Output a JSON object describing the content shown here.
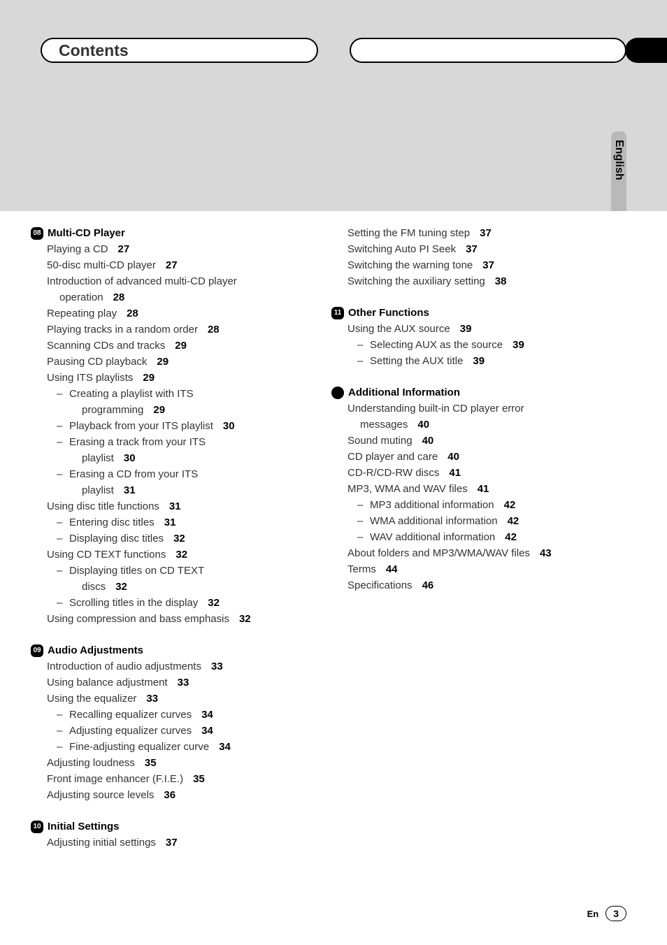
{
  "header": {
    "title": "Contents"
  },
  "lang": {
    "label": "English"
  },
  "footer": {
    "lang_code": "En",
    "page": "3"
  },
  "left": {
    "s08": {
      "badge": "08",
      "title": "Multi-CD Player",
      "items": [
        {
          "t": "Playing a CD",
          "p": "27"
        },
        {
          "t": "50-disc multi-CD player",
          "p": "27"
        },
        {
          "t": "Introduction of advanced multi-CD player",
          "cont": "operation",
          "p": "28"
        },
        {
          "t": "Repeating play",
          "p": "28"
        },
        {
          "t": "Playing tracks in a random order",
          "p": "28"
        },
        {
          "t": "Scanning CDs and tracks",
          "p": "29"
        },
        {
          "t": "Pausing CD playback",
          "p": "29"
        },
        {
          "t": "Using ITS playlists",
          "p": "29"
        },
        {
          "sub": true,
          "t": "Creating a playlist with ITS",
          "cont": "programming",
          "p": "29"
        },
        {
          "sub": true,
          "t": "Playback from your ITS playlist",
          "p": "30"
        },
        {
          "sub": true,
          "t": "Erasing a track from your ITS",
          "cont": "playlist",
          "p": "30"
        },
        {
          "sub": true,
          "t": "Erasing a CD from your ITS",
          "cont": "playlist",
          "p": "31"
        },
        {
          "t": "Using disc title functions",
          "p": "31"
        },
        {
          "sub": true,
          "t": "Entering disc titles",
          "p": "31"
        },
        {
          "sub": true,
          "t": "Displaying disc titles",
          "p": "32"
        },
        {
          "t": "Using CD TEXT functions",
          "p": "32"
        },
        {
          "sub": true,
          "t": "Displaying titles on CD TEXT",
          "cont": "discs",
          "p": "32"
        },
        {
          "sub": true,
          "t": "Scrolling titles in the display",
          "p": "32"
        },
        {
          "t": "Using compression and bass emphasis",
          "p": "32"
        }
      ]
    },
    "s09": {
      "badge": "09",
      "title": "Audio Adjustments",
      "items": [
        {
          "t": "Introduction of audio adjustments",
          "p": "33"
        },
        {
          "t": "Using balance adjustment",
          "p": "33"
        },
        {
          "t": "Using the equalizer",
          "p": "33"
        },
        {
          "sub": true,
          "t": "Recalling equalizer curves",
          "p": "34"
        },
        {
          "sub": true,
          "t": "Adjusting equalizer curves",
          "p": "34"
        },
        {
          "sub": true,
          "t": "Fine-adjusting equalizer curve",
          "p": "34"
        },
        {
          "t": "Adjusting loudness",
          "p": "35"
        },
        {
          "t": "Front image enhancer (F.I.E.)",
          "p": "35"
        },
        {
          "t": "Adjusting source levels",
          "p": "36"
        }
      ]
    },
    "s10": {
      "badge": "10",
      "title": "Initial Settings",
      "items": [
        {
          "t": "Adjusting initial settings",
          "p": "37"
        }
      ]
    }
  },
  "right": {
    "s10b": {
      "items": [
        {
          "t": "Setting the FM tuning step",
          "p": "37"
        },
        {
          "t": "Switching Auto PI Seek",
          "p": "37"
        },
        {
          "t": "Switching the warning tone",
          "p": "37"
        },
        {
          "t": "Switching the auxiliary setting",
          "p": "38"
        }
      ]
    },
    "s11": {
      "badge": "11",
      "title": "Other Functions",
      "items": [
        {
          "t": "Using the AUX source",
          "p": "39"
        },
        {
          "sub": true,
          "t": "Selecting AUX as the source",
          "p": "39"
        },
        {
          "sub": true,
          "t": "Setting the AUX title",
          "p": "39"
        }
      ]
    },
    "sAdd": {
      "title": "Additional Information",
      "items": [
        {
          "t": "Understanding built-in CD player error",
          "cont": "messages",
          "p": "40"
        },
        {
          "t": "Sound muting",
          "p": "40"
        },
        {
          "t": "CD player and care",
          "p": "40"
        },
        {
          "t": "CD-R/CD-RW discs",
          "p": "41"
        },
        {
          "t": "MP3, WMA and WAV files",
          "p": "41"
        },
        {
          "sub": true,
          "t": "MP3 additional information",
          "p": "42"
        },
        {
          "sub": true,
          "t": "WMA additional information",
          "p": "42"
        },
        {
          "sub": true,
          "t": "WAV additional information",
          "p": "42"
        },
        {
          "t": "About folders and MP3/WMA/WAV files",
          "p": "43"
        },
        {
          "t": "Terms",
          "p": "44"
        },
        {
          "t": "Specifications",
          "p": "46"
        }
      ]
    }
  }
}
